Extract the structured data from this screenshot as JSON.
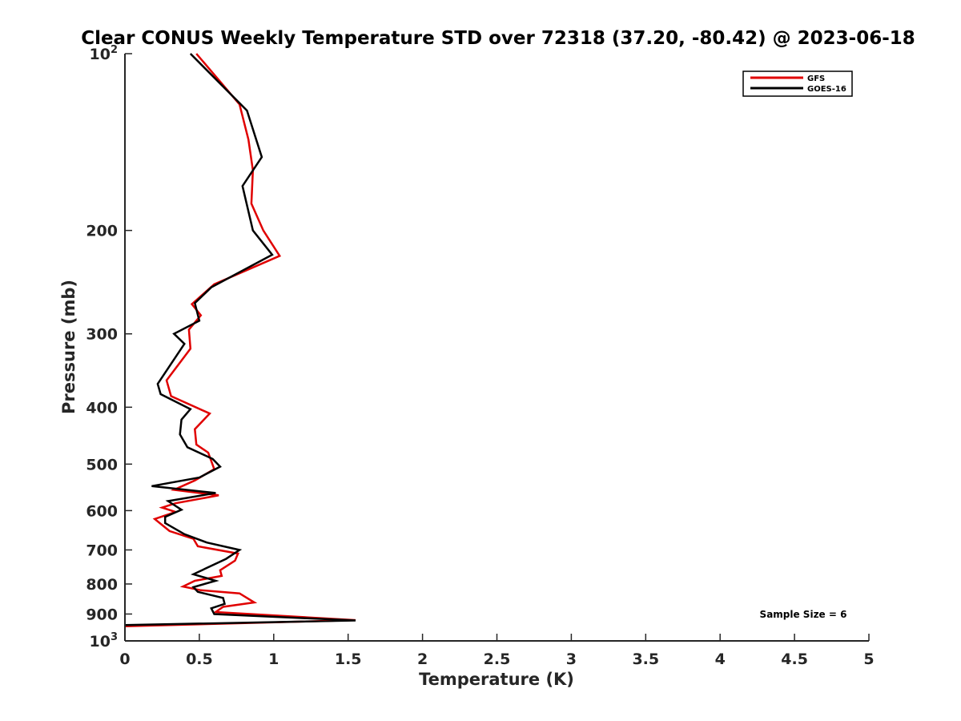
{
  "chart_data": {
    "type": "line",
    "title": "Clear CONUS Weekly Temperature STD over 72318 (37.20, -80.42) @ 2023-06-18",
    "xlabel": "Temperature (K)",
    "ylabel": "Pressure (mb)",
    "xlim": [
      0,
      5
    ],
    "ylim": [
      100,
      1000
    ],
    "y_scale": "log",
    "y_reversed": true,
    "grid": false,
    "legend_position": "top-right",
    "x_ticks": [
      "0",
      "0.5",
      "1",
      "1.5",
      "2",
      "2.5",
      "3",
      "3.5",
      "4",
      "4.5",
      "5"
    ],
    "x_tick_values": [
      0,
      0.5,
      1,
      1.5,
      2,
      2.5,
      3,
      3.5,
      4,
      4.5,
      5
    ],
    "y_ticks": [
      {
        "value": 100,
        "base": "10",
        "exp": "2"
      },
      {
        "value": 200,
        "label": "200"
      },
      {
        "value": 300,
        "label": "300"
      },
      {
        "value": 400,
        "label": "400"
      },
      {
        "value": 500,
        "label": "500"
      },
      {
        "value": 600,
        "label": "600"
      },
      {
        "value": 700,
        "label": "700"
      },
      {
        "value": 800,
        "label": "800"
      },
      {
        "value": 900,
        "label": "900"
      },
      {
        "value": 1000,
        "base": "10",
        "exp": "3"
      }
    ],
    "annotation": "Sample Size = 6",
    "series": [
      {
        "name": "GFS",
        "color": "#e00000",
        "points": [
          [
            0.48,
            100
          ],
          [
            0.77,
            122
          ],
          [
            0.83,
            140
          ],
          [
            0.86,
            158
          ],
          [
            0.85,
            180
          ],
          [
            0.93,
            200
          ],
          [
            1.04,
            221
          ],
          [
            0.6,
            247
          ],
          [
            0.45,
            267
          ],
          [
            0.51,
            279
          ],
          [
            0.43,
            295
          ],
          [
            0.44,
            318
          ],
          [
            0.28,
            360
          ],
          [
            0.31,
            383
          ],
          [
            0.57,
            410
          ],
          [
            0.47,
            436
          ],
          [
            0.48,
            463
          ],
          [
            0.56,
            478
          ],
          [
            0.6,
            510
          ],
          [
            0.47,
            533
          ],
          [
            0.33,
            553
          ],
          [
            0.63,
            565
          ],
          [
            0.34,
            583
          ],
          [
            0.25,
            593
          ],
          [
            0.34,
            603
          ],
          [
            0.2,
            620
          ],
          [
            0.3,
            650
          ],
          [
            0.46,
            670
          ],
          [
            0.49,
            690
          ],
          [
            0.76,
            710
          ],
          [
            0.74,
            730
          ],
          [
            0.64,
            758
          ],
          [
            0.65,
            775
          ],
          [
            0.47,
            790
          ],
          [
            0.39,
            808
          ],
          [
            0.51,
            820
          ],
          [
            0.77,
            830
          ],
          [
            0.87,
            860
          ],
          [
            0.66,
            875
          ],
          [
            0.61,
            893
          ],
          [
            1.55,
            922
          ],
          [
            0.0,
            944
          ]
        ]
      },
      {
        "name": "GOES-16",
        "color": "#000000",
        "points": [
          [
            0.44,
            100
          ],
          [
            0.82,
            125
          ],
          [
            0.92,
            150
          ],
          [
            0.79,
            168
          ],
          [
            0.86,
            200
          ],
          [
            0.99,
            220
          ],
          [
            0.58,
            250
          ],
          [
            0.47,
            266
          ],
          [
            0.5,
            285
          ],
          [
            0.33,
            300
          ],
          [
            0.4,
            312
          ],
          [
            0.22,
            365
          ],
          [
            0.24,
            380
          ],
          [
            0.44,
            403
          ],
          [
            0.38,
            420
          ],
          [
            0.37,
            445
          ],
          [
            0.42,
            468
          ],
          [
            0.59,
            490
          ],
          [
            0.64,
            505
          ],
          [
            0.5,
            527
          ],
          [
            0.18,
            545
          ],
          [
            0.61,
            560
          ],
          [
            0.29,
            578
          ],
          [
            0.38,
            598
          ],
          [
            0.27,
            615
          ],
          [
            0.27,
            630
          ],
          [
            0.4,
            658
          ],
          [
            0.55,
            680
          ],
          [
            0.77,
            700
          ],
          [
            0.68,
            725
          ],
          [
            0.46,
            770
          ],
          [
            0.61,
            790
          ],
          [
            0.46,
            810
          ],
          [
            0.49,
            825
          ],
          [
            0.66,
            845
          ],
          [
            0.67,
            865
          ],
          [
            0.58,
            880
          ],
          [
            0.6,
            900
          ],
          [
            1.55,
            923
          ],
          [
            0.0,
            940
          ]
        ]
      }
    ]
  }
}
